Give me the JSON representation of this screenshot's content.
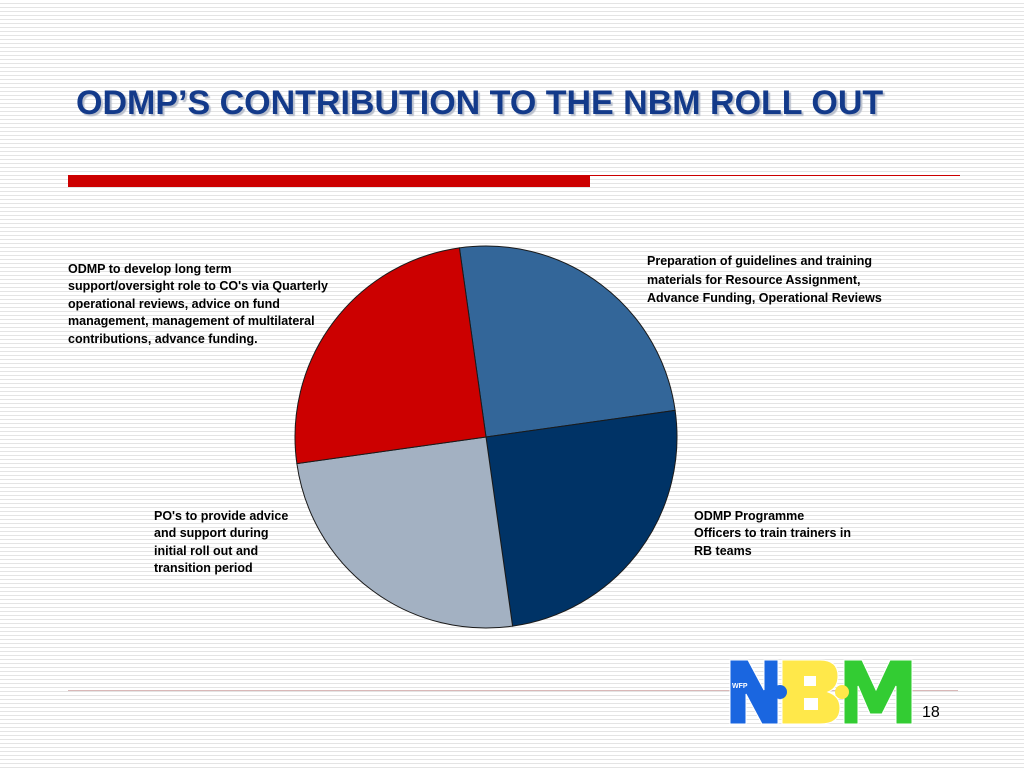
{
  "slide": {
    "title": "ODMP’S CONTRIBUTION TO THE NBM ROLL OUT",
    "page_number": "18"
  },
  "logo": {
    "small_text": "WFP",
    "colors": [
      "#1a66e0",
      "#ffe84a",
      "#33cc33"
    ]
  },
  "colors": {
    "title": "#133a8a",
    "accent_bar": "#cc0000"
  },
  "chart_data": {
    "type": "pie",
    "title": "",
    "slices": [
      {
        "label": "Preparation of guidelines and training materials for Resource Assignment, Advance Funding, Operational Reviews",
        "value": 25,
        "color": "#336699"
      },
      {
        "label": "ODMP Programme Officers to train trainers in RB teams",
        "value": 25,
        "color": "#003366"
      },
      {
        "label": "PO's to provide advice and support during initial roll out and transition period",
        "value": 25,
        "color": "#a3b1c2"
      },
      {
        "label": "ODMP to develop long term support/oversight role to CO's via Quarterly operational reviews, advice on fund management, management of multilateral contributions, advance funding.",
        "value": 25,
        "color": "#cc0000"
      }
    ],
    "legend": "none"
  }
}
